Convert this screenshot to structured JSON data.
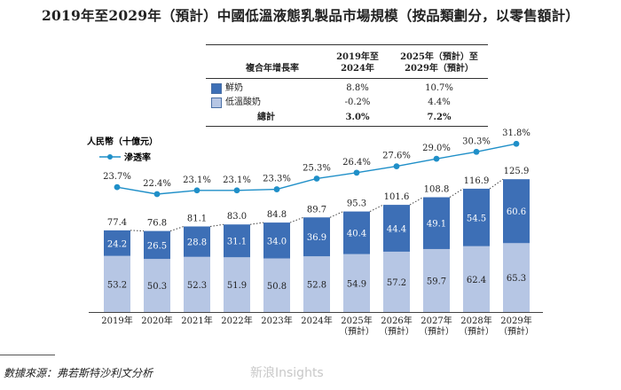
{
  "title": "2019年至2029年（預計）中國低溫液態乳製品市場規模（按品類劃分，以零售額計）",
  "cagr_table": {
    "header_label": "複合年增長率",
    "col1_line1": "2019年至",
    "col1_line2": "2024年",
    "col2_line1": "2025年（預計）至",
    "col2_line2": "2029年（預計）",
    "rows": [
      {
        "label": "鮮奶",
        "v1": "8.8%",
        "v2": "10.7%"
      },
      {
        "label": "低溫酸奶",
        "v1": "-0.2%",
        "v2": "4.4%"
      }
    ],
    "total": {
      "label": "總計",
      "v1": "3.0%",
      "v2": "7.2%"
    }
  },
  "colors": {
    "fresh": "#3d6fb6",
    "yogurt": "#b6c6e4",
    "line": "#1f8fc8",
    "rule": "#333333"
  },
  "chart_data": {
    "type": "bar",
    "stacked": true,
    "ylabel": "人民幣（十億元）",
    "categories": [
      "2019年",
      "2020年",
      "2021年",
      "2022年",
      "2023年",
      "2024年",
      "2025年",
      "2026年",
      "2027年",
      "2028年",
      "2029年"
    ],
    "category_sublabels": [
      "",
      "",
      "",
      "",
      "",
      "",
      "（預計）",
      "（預計）",
      "（預計）",
      "（預計）",
      "（預計）"
    ],
    "series": [
      {
        "name": "低溫酸奶",
        "values": [
          53.2,
          50.3,
          52.3,
          51.9,
          50.8,
          52.8,
          54.9,
          57.2,
          59.7,
          62.4,
          65.3
        ]
      },
      {
        "name": "鮮奶",
        "values": [
          24.2,
          26.5,
          28.8,
          31.1,
          34.0,
          36.9,
          40.4,
          44.4,
          49.1,
          54.5,
          60.6
        ]
      }
    ],
    "totals": [
      77.4,
      76.8,
      81.1,
      83.0,
      84.8,
      89.7,
      95.3,
      101.6,
      108.8,
      116.9,
      125.9
    ],
    "penetration": {
      "name": "滲透率",
      "values": [
        23.7,
        22.4,
        23.1,
        23.1,
        23.3,
        25.3,
        26.4,
        27.6,
        29.0,
        30.3,
        31.8
      ],
      "labels": [
        "23.7%",
        "22.4%",
        "23.1%",
        "23.1%",
        "23.3%",
        "25.3%",
        "26.4%",
        "27.6%",
        "29.0%",
        "30.3%",
        "31.8%"
      ]
    }
  },
  "footnote": "數據來源：弗若斯特沙利文分析",
  "watermark": "新浪Insights"
}
